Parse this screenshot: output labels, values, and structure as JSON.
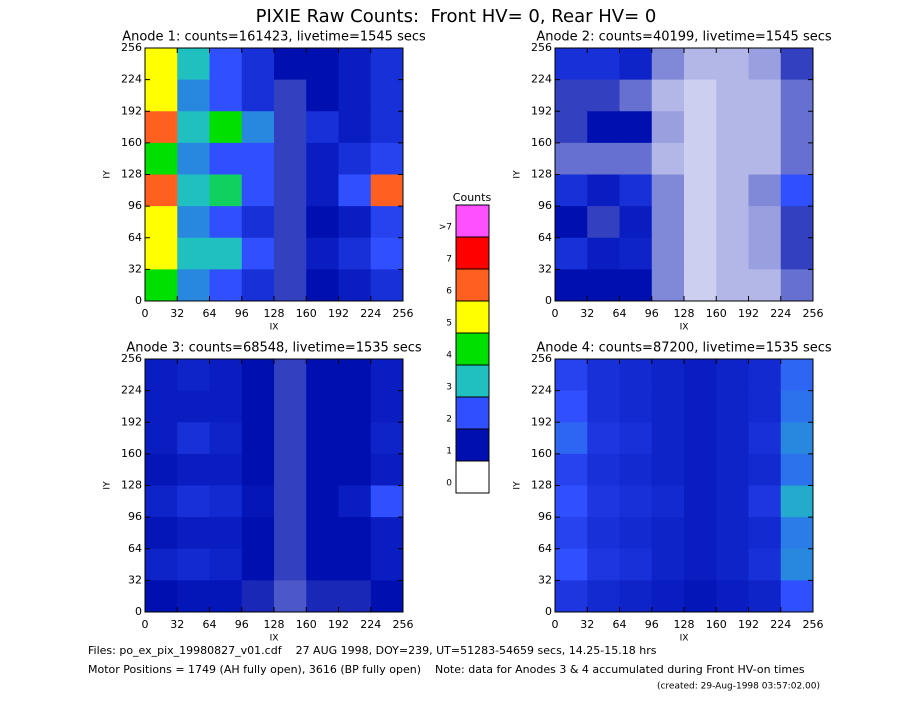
{
  "title": "PIXIE Raw Counts:  Front HV= 0, Rear HV= 0",
  "chart_data": [
    {
      "type": "heatmap",
      "title": "Anode 1: counts=161423, livetime=1545 secs",
      "xlabel": "IX",
      "ylabel": "IY",
      "xlim": [
        0,
        256
      ],
      "ylim": [
        0,
        256
      ],
      "xticks": [
        0,
        32,
        64,
        96,
        128,
        160,
        192,
        224,
        256
      ],
      "yticks": [
        0,
        32,
        64,
        96,
        128,
        160,
        192,
        224,
        256
      ],
      "values": [
        [
          5,
          3,
          2,
          1.5,
          1,
          1,
          1.2,
          1.5
        ],
        [
          5,
          2.5,
          2,
          1.5,
          0.8,
          1,
          1.2,
          1.5
        ],
        [
          6,
          3,
          4,
          2.5,
          0.8,
          1.5,
          1.2,
          1.5
        ],
        [
          4,
          2.5,
          2,
          2,
          0.8,
          1.2,
          1.5,
          1.8
        ],
        [
          6,
          3,
          3.5,
          2,
          0.8,
          1.2,
          2,
          6
        ],
        [
          5,
          2.5,
          2,
          1.5,
          0.8,
          1,
          1.2,
          1.8
        ],
        [
          5,
          3,
          3,
          2,
          0.8,
          1.2,
          1.5,
          2
        ],
        [
          4,
          2.5,
          2,
          1.5,
          0.8,
          1,
          1.2,
          1.5
        ]
      ]
    },
    {
      "type": "heatmap",
      "title": "Anode 2: counts=40199, livetime=1545 secs",
      "xlabel": "IX",
      "ylabel": "IY",
      "xlim": [
        0,
        256
      ],
      "ylim": [
        0,
        256
      ],
      "xticks": [
        0,
        32,
        64,
        96,
        128,
        160,
        192,
        224,
        256
      ],
      "yticks": [
        0,
        32,
        64,
        96,
        128,
        160,
        192,
        224,
        256
      ],
      "values": [
        [
          1.5,
          1.5,
          1.3,
          0.5,
          0.3,
          0.3,
          0.4,
          0.8
        ],
        [
          0.8,
          0.8,
          0.6,
          0.3,
          0.2,
          0.3,
          0.3,
          0.6
        ],
        [
          0.8,
          1,
          1,
          0.4,
          0.2,
          0.3,
          0.3,
          0.6
        ],
        [
          0.6,
          0.6,
          0.6,
          0.3,
          0.2,
          0.3,
          0.3,
          0.6
        ],
        [
          1.5,
          1.2,
          1.5,
          0.5,
          0.2,
          0.3,
          0.5,
          2
        ],
        [
          1,
          0.8,
          1.2,
          0.5,
          0.2,
          0.3,
          0.4,
          0.8
        ],
        [
          1.5,
          1.2,
          1.3,
          0.5,
          0.2,
          0.3,
          0.4,
          0.8
        ],
        [
          1,
          1,
          1,
          0.5,
          0.2,
          0.3,
          0.3,
          0.6
        ]
      ]
    },
    {
      "type": "heatmap",
      "title": "Anode 3: counts=68548, livetime=1535 secs",
      "xlabel": "IX",
      "ylabel": "IY",
      "xlim": [
        0,
        256
      ],
      "ylim": [
        0,
        256
      ],
      "xticks": [
        0,
        32,
        64,
        96,
        128,
        160,
        192,
        224,
        256
      ],
      "yticks": [
        0,
        32,
        64,
        96,
        128,
        160,
        192,
        224,
        256
      ],
      "values": [
        [
          1.2,
          1.3,
          1.2,
          1,
          0.8,
          1,
          1,
          1.2
        ],
        [
          1.2,
          1.2,
          1.2,
          1,
          0.8,
          1,
          1,
          1.2
        ],
        [
          1.2,
          1.5,
          1.3,
          1,
          0.8,
          1,
          1,
          1.3
        ],
        [
          1.1,
          1.2,
          1.2,
          1,
          0.8,
          1,
          1,
          1.2
        ],
        [
          1.3,
          1.5,
          1.4,
          1.1,
          0.8,
          1,
          1.2,
          2
        ],
        [
          1.1,
          1.2,
          1.2,
          1,
          0.8,
          1,
          1,
          1.2
        ],
        [
          1.3,
          1.4,
          1.3,
          1,
          0.8,
          1,
          1,
          1.2
        ],
        [
          1,
          1.1,
          1.1,
          0.9,
          0.7,
          0.9,
          0.9,
          1
        ]
      ]
    },
    {
      "type": "heatmap",
      "title": "Anode 4: counts=87200, livetime=1535 secs",
      "xlabel": "IX",
      "ylabel": "IY",
      "xlim": [
        0,
        256
      ],
      "ylim": [
        0,
        256
      ],
      "xticks": [
        0,
        32,
        64,
        96,
        128,
        160,
        192,
        224,
        256
      ],
      "yticks": [
        0,
        32,
        64,
        96,
        128,
        160,
        192,
        224,
        256
      ],
      "values": [
        [
          1.8,
          1.5,
          1.4,
          1.3,
          1.2,
          1.3,
          1.4,
          2.2
        ],
        [
          2,
          1.5,
          1.4,
          1.3,
          1.2,
          1.3,
          1.4,
          2.3
        ],
        [
          2.2,
          1.6,
          1.5,
          1.3,
          1.2,
          1.3,
          1.5,
          2.5
        ],
        [
          1.8,
          1.5,
          1.4,
          1.3,
          1.2,
          1.3,
          1.4,
          2.3
        ],
        [
          2,
          1.6,
          1.5,
          1.4,
          1.2,
          1.3,
          1.6,
          2.8
        ],
        [
          1.8,
          1.5,
          1.4,
          1.3,
          1.2,
          1.3,
          1.4,
          2.4
        ],
        [
          2,
          1.6,
          1.5,
          1.3,
          1.2,
          1.3,
          1.5,
          2.5
        ],
        [
          1.6,
          1.4,
          1.3,
          1.2,
          1.1,
          1.2,
          1.3,
          2
        ]
      ]
    }
  ],
  "colorbar": {
    "title": "Counts",
    "ticks": [
      0,
      1,
      2,
      3,
      4,
      5,
      6,
      7,
      {
        "value": 8,
        "label": ">7"
      }
    ],
    "colors": [
      "#ffffff",
      "#0010b0",
      "#3050ff",
      "#20c0c0",
      "#00e000",
      "#ffff00",
      "#ff6020",
      "#ff0000",
      "#ff50ff"
    ]
  },
  "notes": [
    "Files: po_ex_pix_19980827_v01.cdf    27 AUG 1998, DOY=239, UT=51283-54659 secs, 14.25-15.18 hrs",
    "Motor Positions = 1749 (AH fully open), 3616 (BP fully open)    Note: data for Anodes 3 & 4 accumulated during Front HV-on times",
    "(created: 29-Aug-1998 03:57:02.00)"
  ]
}
